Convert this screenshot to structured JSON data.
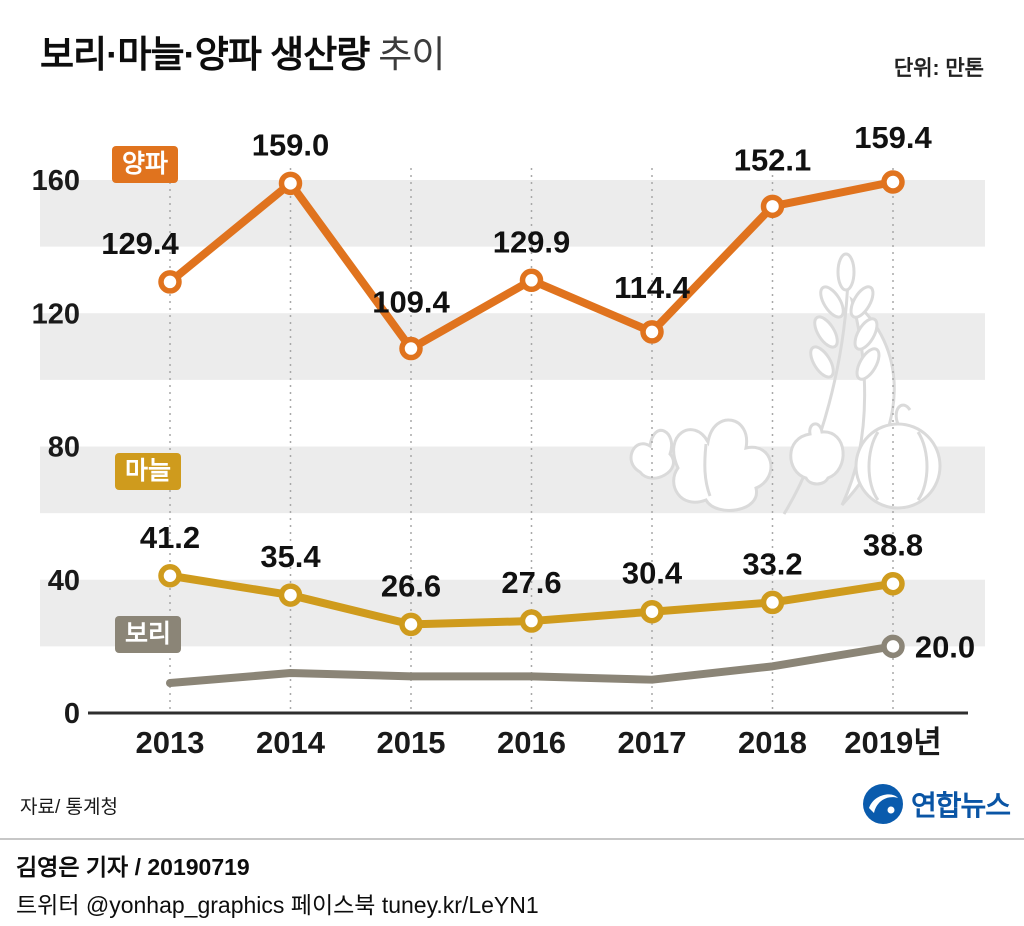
{
  "header": {
    "title_main": "보리·마늘·양파 생산량",
    "title_sub": "추이",
    "unit": "단위: 만톤"
  },
  "chart_data": {
    "type": "line",
    "title": "보리·마늘·양파 생산량 추이",
    "unit": "만톤",
    "categories": [
      "2013",
      "2014",
      "2015",
      "2016",
      "2017",
      "2018",
      "2019년"
    ],
    "yticks": [
      0,
      40,
      80,
      120,
      160
    ],
    "ylim": [
      0,
      180
    ],
    "grid": "vertical-dashed",
    "legend_position": "inline-badges",
    "series": [
      {
        "name": "양파",
        "color": "#e0731e",
        "values": [
          129.4,
          159.0,
          109.4,
          129.9,
          114.4,
          152.1,
          159.4
        ],
        "labels": [
          "129.4",
          "159.0",
          "109.4",
          "129.9",
          "114.4",
          "152.1",
          "159.4"
        ]
      },
      {
        "name": "마늘",
        "color": "#cf9b1d",
        "values": [
          41.2,
          35.4,
          26.6,
          27.6,
          30.4,
          33.2,
          38.8
        ],
        "labels": [
          "41.2",
          "35.4",
          "26.6",
          "27.6",
          "30.4",
          "33.2",
          "38.8"
        ]
      },
      {
        "name": "보리",
        "color": "#8b8577",
        "values": [
          9,
          12,
          11,
          11,
          10,
          14,
          20
        ],
        "labels": [
          "",
          "",
          "",
          "",
          "",
          "",
          "20.0"
        ]
      }
    ]
  },
  "footer": {
    "source": "자료/ 통계청",
    "logo_text": "연합뉴스",
    "byline": "김영은 기자 / 20190719",
    "social": "트위터 @yonhap_graphics  페이스북 tuney.kr/LeYN1"
  }
}
